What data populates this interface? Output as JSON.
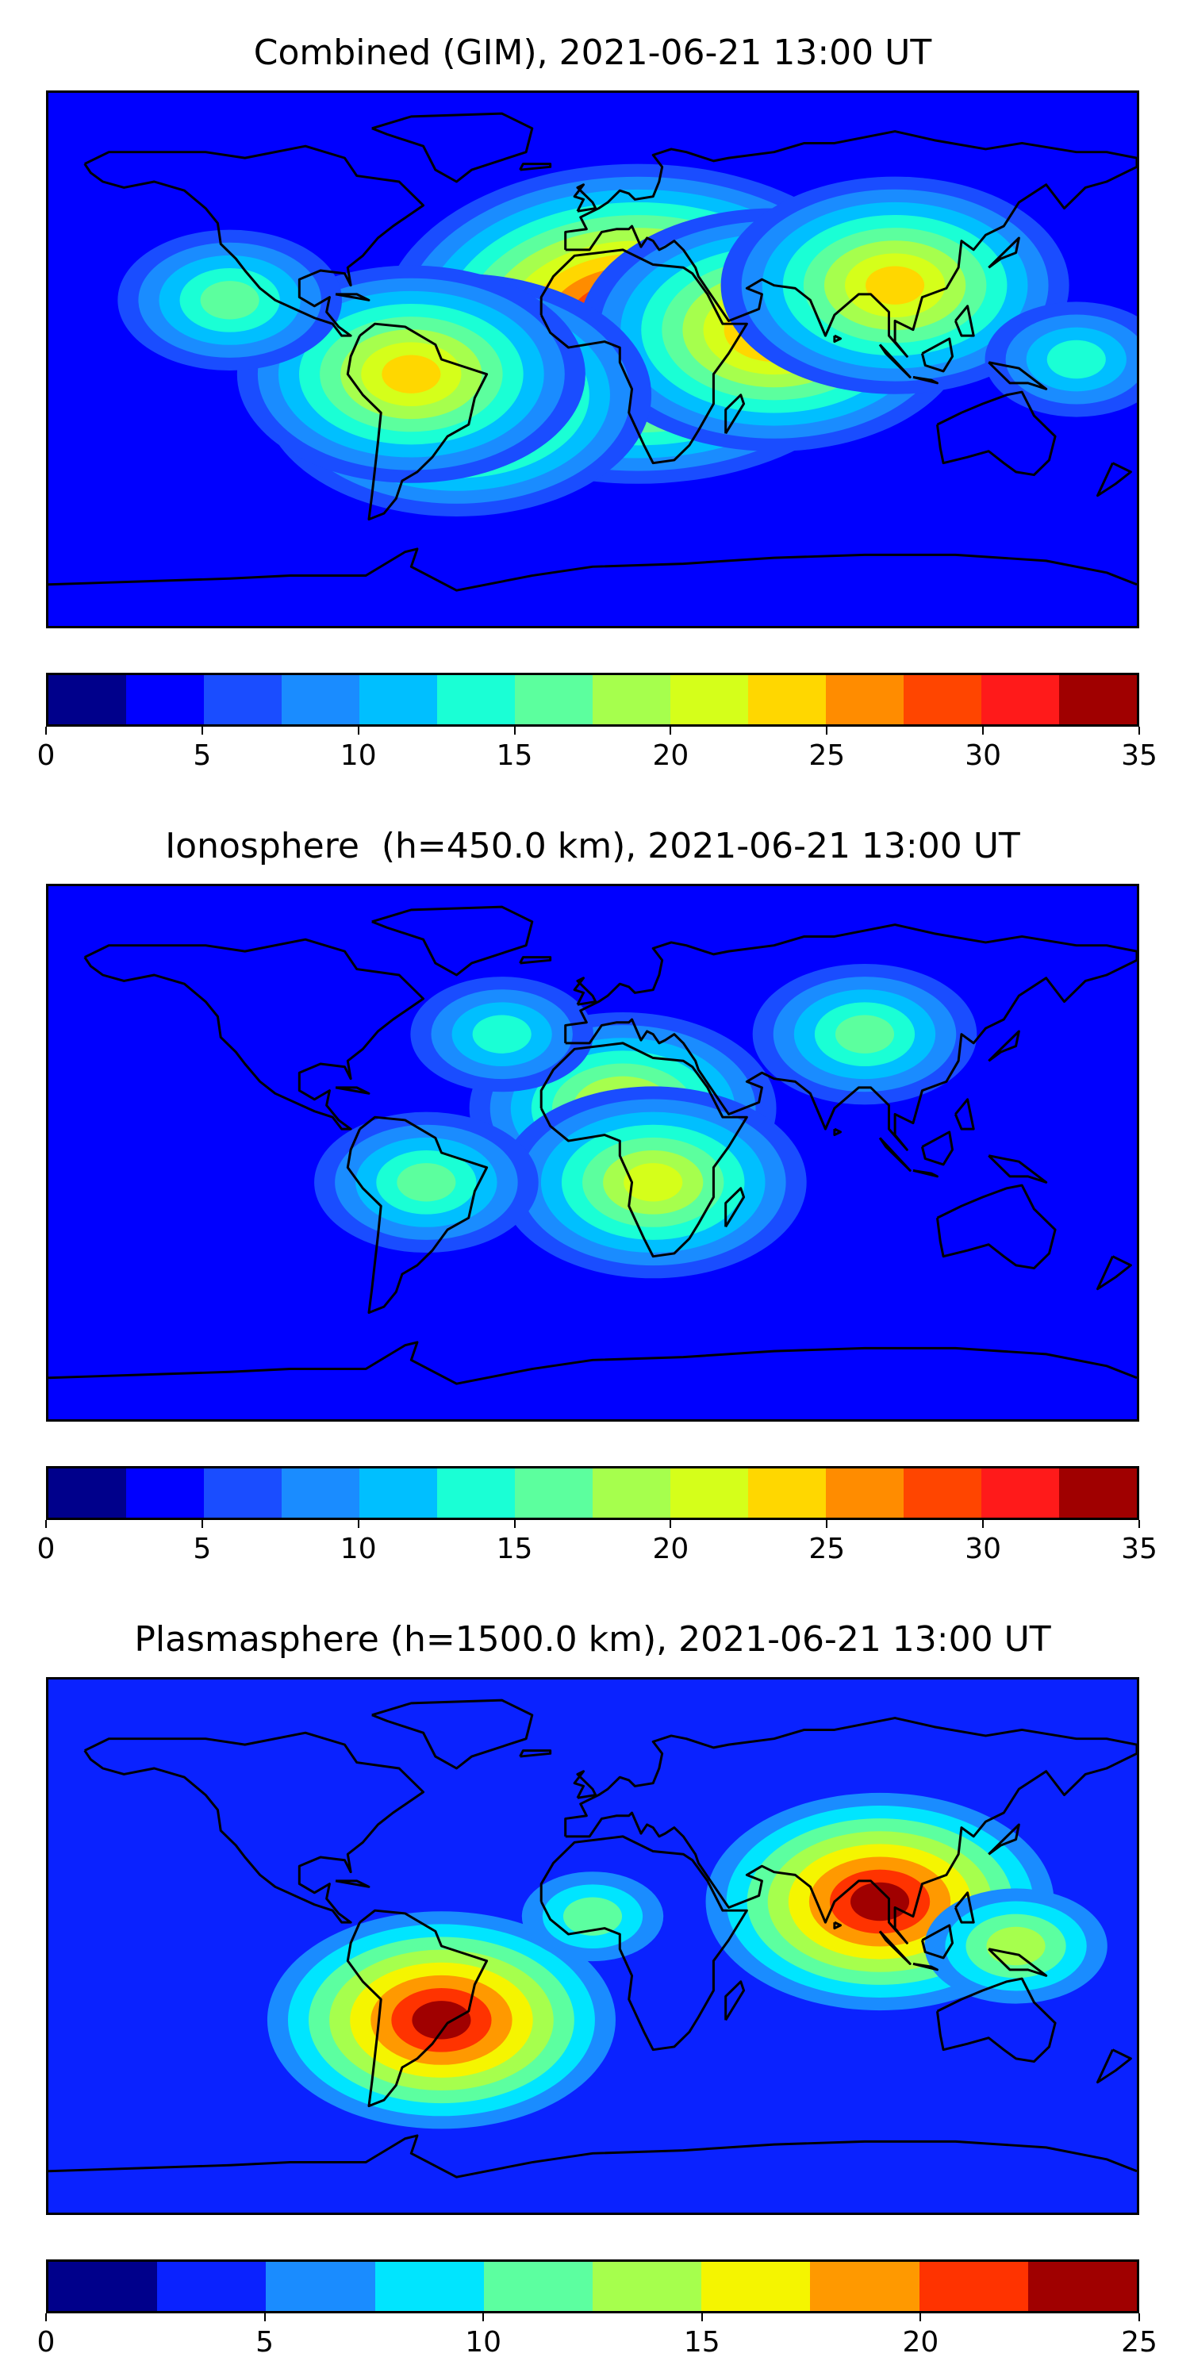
{
  "panels": [
    {
      "title": "Combined (GIM), 2021-06-21 13:00 UT",
      "colorbar": {
        "ticks": [
          "0",
          "5",
          "10",
          "15",
          "20",
          "25",
          "30",
          "35"
        ],
        "colors": [
          "#00008b",
          "#0000ff",
          "#1a4dff",
          "#1a8cff",
          "#00bfff",
          "#1affd5",
          "#5cff9e",
          "#a6ff4d",
          "#d5ff1a",
          "#ffd700",
          "#ff8c00",
          "#ff4500",
          "#ff1a1a",
          "#a00000"
        ]
      },
      "hotspots": [
        {
          "lon": 15,
          "lat": 12,
          "level": 13
        },
        {
          "lon": 60,
          "lat": 10,
          "level": 10
        },
        {
          "lon": -45,
          "lat": -12,
          "level": 10
        },
        {
          "lon": 100,
          "lat": 25,
          "level": 9
        },
        {
          "lon": -60,
          "lat": -5,
          "level": 9
        },
        {
          "lon": -120,
          "lat": 20,
          "level": 6
        },
        {
          "lon": 160,
          "lat": 0,
          "level": 5
        }
      ]
    },
    {
      "title": "Ionosphere  (h=450.0 km), 2021-06-21 13:00 UT",
      "colorbar": {
        "ticks": [
          "0",
          "5",
          "10",
          "15",
          "20",
          "25",
          "30",
          "35"
        ],
        "colors": [
          "#00008b",
          "#0000ff",
          "#1a4dff",
          "#1a8cff",
          "#00bfff",
          "#1affd5",
          "#5cff9e",
          "#a6ff4d",
          "#d5ff1a",
          "#ffd700",
          "#ff8c00",
          "#ff4500",
          "#ff1a1a",
          "#a00000"
        ]
      },
      "hotspots": [
        {
          "lon": 10,
          "lat": 15,
          "level": 8
        },
        {
          "lon": 20,
          "lat": -10,
          "level": 8
        },
        {
          "lon": 90,
          "lat": 40,
          "level": 6
        },
        {
          "lon": -55,
          "lat": -10,
          "level": 6
        },
        {
          "lon": -30,
          "lat": 40,
          "level": 5
        }
      ]
    },
    {
      "title": "Plasmasphere (h=1500.0 km), 2021-06-21 13:00 UT",
      "colorbar": {
        "ticks": [
          "0",
          "5",
          "10",
          "15",
          "20",
          "25"
        ],
        "colors": [
          "#00008b",
          "#0a22ff",
          "#1a8cff",
          "#00e5ff",
          "#5cffa0",
          "#a6ff4d",
          "#f5f500",
          "#ff9900",
          "#ff3300",
          "#a00000"
        ]
      },
      "hotspots": [
        {
          "lon": 95,
          "lat": 15,
          "level": 9
        },
        {
          "lon": -50,
          "lat": -25,
          "level": 9
        },
        {
          "lon": 140,
          "lat": 0,
          "level": 5
        },
        {
          "lon": 0,
          "lat": 10,
          "level": 4
        }
      ]
    }
  ]
}
